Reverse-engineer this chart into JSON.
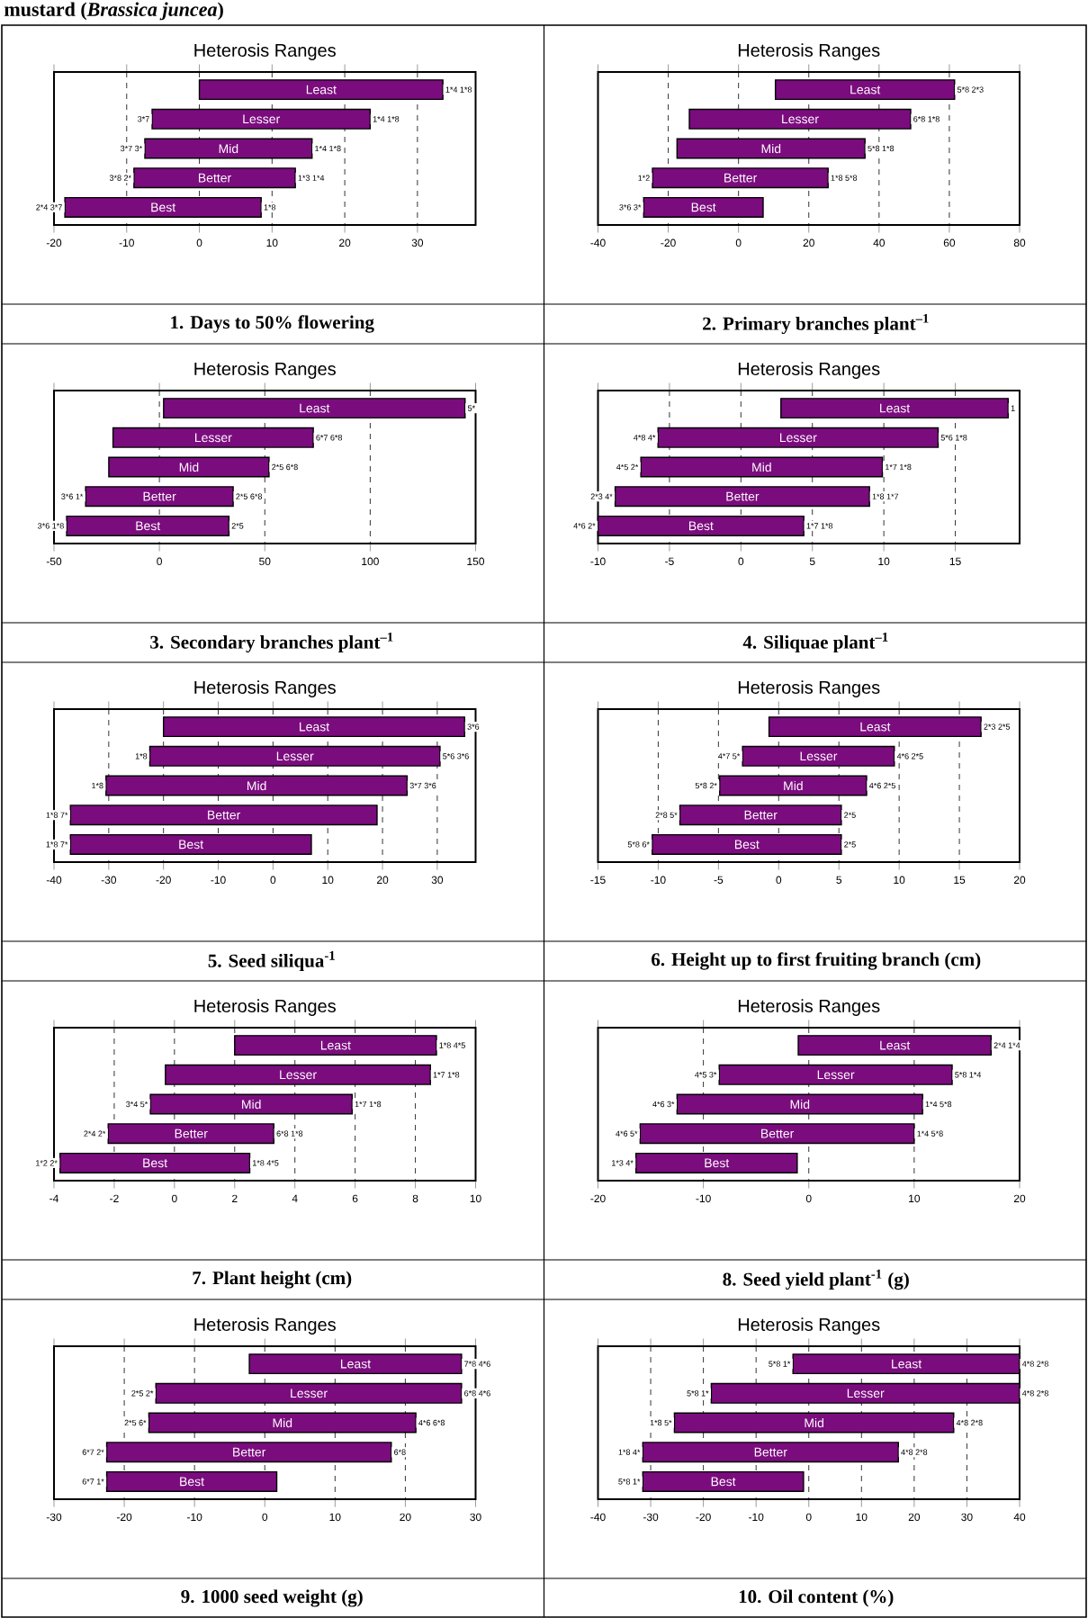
{
  "chart_data": [
    {
      "type": "other",
      "title": "mustard (*Brassica juncea*)"
    },
    {
      "type": "bar",
      "orientation": "horizontal",
      "title": "Heterosis Ranges",
      "xlabel": "1. Days to 50% flowering",
      "color": "#7b0c7e",
      "grid": "x",
      "categories": [
        "Least",
        "Lesser",
        "Mid",
        "Better",
        "Best"
      ],
      "base": [
        0,
        -6.5,
        -7.5,
        -9,
        -18.5
      ],
      "values": [
        33.5,
        30,
        23,
        22.2,
        27
      ],
      "xlim": [
        -20,
        38
      ],
      "xticks": [
        -20,
        -10,
        0,
        10,
        20,
        30
      ],
      "annotations": [
        {
          "text": "1*4 1*8",
          "x": 33.5,
          "y": "Least"
        },
        {
          "text": "3*7",
          "x": -6.5,
          "y": "Lesser"
        },
        {
          "text": "1*4 1*8",
          "x": 23.5,
          "y": "Lesser"
        },
        {
          "text": "3*7 3*",
          "x": -7.5,
          "y": "Mid"
        },
        {
          "text": "1*4 1*8",
          "x": 15.5,
          "y": "Mid"
        },
        {
          "text": "3*8 2*",
          "x": -9,
          "y": "Better"
        },
        {
          "text": "1*3 1*4",
          "x": 13.2,
          "y": "Better"
        },
        {
          "text": "2*4 3*7",
          "x": -18.5,
          "y": "Best"
        },
        {
          "text": "1*8",
          "x": 8.5,
          "y": "Best"
        }
      ]
    },
    {
      "type": "bar",
      "orientation": "horizontal",
      "title": "Heterosis Ranges",
      "xlabel": "2. Primary branches plant$^{–1}$",
      "color": "#7b0c7e",
      "grid": "x",
      "categories": [
        "Least",
        "Lesser",
        "Mid",
        "Better",
        "Best"
      ],
      "base": [
        10.5,
        -14,
        -17.5,
        -24.5,
        -27
      ],
      "values": [
        51,
        63,
        53.5,
        50,
        34
      ],
      "xlim": [
        -40,
        80
      ],
      "xticks": [
        -40,
        -20,
        0,
        20,
        40,
        60,
        80
      ],
      "annotations": [
        {
          "text": "5*8 2*3",
          "x": 61.5,
          "y": "Least"
        },
        {
          "text": "6*8 1*8",
          "x": 49,
          "y": "Lesser"
        },
        {
          "text": "5*8 1*8",
          "x": 36,
          "y": "Mid"
        },
        {
          "text": "1*2",
          "x": -24.5,
          "y": "Better"
        },
        {
          "text": "1*8 5*8",
          "x": 25.5,
          "y": "Better"
        },
        {
          "text": "3*6 3*",
          "x": -27,
          "y": "Best"
        }
      ]
    },
    {
      "type": "bar",
      "orientation": "horizontal",
      "title": "Heterosis Ranges",
      "xlabel": "3. Secondary branches plant$^{–1}$",
      "color": "#7b0c7e",
      "grid": "x",
      "categories": [
        "Least",
        "Lesser",
        "Mid",
        "Better",
        "Best"
      ],
      "base": [
        2,
        -22,
        -24,
        -35,
        -44
      ],
      "values": [
        143,
        95,
        76,
        70,
        77
      ],
      "xlim": [
        -50,
        150
      ],
      "xticks": [
        -50,
        0,
        50,
        100,
        150
      ],
      "annotations": [
        {
          "text": "5*",
          "x": 145,
          "y": "Least"
        },
        {
          "text": "6*7 6*8",
          "x": 73,
          "y": "Lesser"
        },
        {
          "text": "2*5 6*8",
          "x": 52,
          "y": "Mid"
        },
        {
          "text": "3*6 1*",
          "x": -35,
          "y": "Better"
        },
        {
          "text": "2*5 6*8",
          "x": 35,
          "y": "Better"
        },
        {
          "text": "3*6 1*8",
          "x": -44,
          "y": "Best"
        },
        {
          "text": "2*5",
          "x": 33,
          "y": "Best"
        }
      ]
    },
    {
      "type": "bar",
      "orientation": "horizontal",
      "title": "Heterosis Ranges",
      "xlabel": "4. Siliquae plant$^{–1}$",
      "color": "#7b0c7e",
      "grid": "x",
      "categories": [
        "Least",
        "Lesser",
        "Mid",
        "Better",
        "Best"
      ],
      "base": [
        2.8,
        -5.8,
        -7,
        -8.8,
        -10
      ],
      "values": [
        15.9,
        19.6,
        16.9,
        17.8,
        14.4
      ],
      "xlim": [
        -10,
        19.5
      ],
      "xticks": [
        -10,
        -5,
        0,
        5,
        10,
        15
      ],
      "annotations": [
        {
          "text": "1",
          "x": 18.7,
          "y": "Least"
        },
        {
          "text": "4*8 4*",
          "x": -5.8,
          "y": "Lesser"
        },
        {
          "text": "5*6 1*8",
          "x": 13.8,
          "y": "Lesser"
        },
        {
          "text": "4*5 2*",
          "x": -7,
          "y": "Mid"
        },
        {
          "text": "1*7 1*8",
          "x": 9.9,
          "y": "Mid"
        },
        {
          "text": "2*3 4*",
          "x": -8.8,
          "y": "Better"
        },
        {
          "text": "1*8 1*7",
          "x": 9,
          "y": "Better"
        },
        {
          "text": "4*6 2*",
          "x": -10,
          "y": "Best"
        },
        {
          "text": "1*7 1*8",
          "x": 4.4,
          "y": "Best"
        }
      ]
    },
    {
      "type": "bar",
      "orientation": "horizontal",
      "title": "Heterosis Ranges",
      "xlabel": "5. Seed siliqua$^{-1}$",
      "color": "#7b0c7e",
      "grid": "x",
      "categories": [
        "Least",
        "Lesser",
        "Mid",
        "Better",
        "Best"
      ],
      "base": [
        -20,
        -22.5,
        -30.5,
        -37,
        -37
      ],
      "values": [
        55,
        53,
        55,
        56,
        44
      ],
      "xlim": [
        -40,
        37
      ],
      "xticks": [
        -40,
        -30,
        -20,
        -10,
        0,
        10,
        20,
        30
      ],
      "annotations": [
        {
          "text": "3*6",
          "x": 35,
          "y": "Least"
        },
        {
          "text": "1*8",
          "x": -22.5,
          "y": "Lesser"
        },
        {
          "text": "5*6 3*6",
          "x": 30.5,
          "y": "Lesser"
        },
        {
          "text": "1*8",
          "x": -30.5,
          "y": "Mid"
        },
        {
          "text": "3*7 3*6",
          "x": 24.5,
          "y": "Mid"
        },
        {
          "text": "1*8 7*",
          "x": -37,
          "y": "Better"
        },
        {
          "text": "1*8 7*",
          "x": -37,
          "y": "Best"
        }
      ]
    },
    {
      "type": "bar",
      "orientation": "horizontal",
      "title": "Heterosis Ranges",
      "xlabel": "6. Height up to first fruiting branch (cm)",
      "color": "#7b0c7e",
      "grid": "x",
      "categories": [
        "Least",
        "Lesser",
        "Mid",
        "Better",
        "Best"
      ],
      "base": [
        -0.8,
        -3,
        -4.9,
        -8.2,
        -10.5
      ],
      "values": [
        17.6,
        12.6,
        12.2,
        13.4,
        15.7
      ],
      "xlim": [
        -15,
        20
      ],
      "xticks": [
        -15,
        -10,
        -5,
        0,
        5,
        10,
        15,
        20
      ],
      "annotations": [
        {
          "text": "2*3 2*5",
          "x": 16.8,
          "y": "Least"
        },
        {
          "text": "4*7 5*",
          "x": -3,
          "y": "Lesser"
        },
        {
          "text": "4*6 2*5",
          "x": 9.6,
          "y": "Lesser"
        },
        {
          "text": "5*8 2*",
          "x": -4.9,
          "y": "Mid"
        },
        {
          "text": "4*6 2*5",
          "x": 7.3,
          "y": "Mid"
        },
        {
          "text": "2*8 5*",
          "x": -8.2,
          "y": "Better"
        },
        {
          "text": "2*5",
          "x": 5.2,
          "y": "Better"
        },
        {
          "text": "5*8 6*",
          "x": -10.5,
          "y": "Best"
        },
        {
          "text": "2*5",
          "x": 5.2,
          "y": "Best"
        }
      ]
    },
    {
      "type": "bar",
      "orientation": "horizontal",
      "title": "Heterosis Ranges",
      "xlabel": "7. Plant height (cm)",
      "color": "#7b0c7e",
      "grid": "x",
      "categories": [
        "Least",
        "Lesser",
        "Mid",
        "Better",
        "Best"
      ],
      "base": [
        2,
        -0.3,
        -0.8,
        -2.2,
        -3.8
      ],
      "values": [
        6.7,
        8.8,
        6.7,
        5.5,
        6.3
      ],
      "xlim": [
        -4,
        10
      ],
      "xticks": [
        -4,
        -2,
        0,
        2,
        4,
        6,
        8,
        10
      ],
      "annotations": [
        {
          "text": "1*8 4*5",
          "x": 8.7,
          "y": "Least"
        },
        {
          "text": "1*7 1*8",
          "x": 8.5,
          "y": "Lesser"
        },
        {
          "text": "3*4 5*",
          "x": -0.8,
          "y": "Mid"
        },
        {
          "text": "1*7 1*8",
          "x": 5.9,
          "y": "Mid"
        },
        {
          "text": "2*4 2*",
          "x": -2.2,
          "y": "Better"
        },
        {
          "text": "6*8 1*8",
          "x": 3.3,
          "y": "Better"
        },
        {
          "text": "1*2 2*",
          "x": -3.8,
          "y": "Best"
        },
        {
          "text": "1*8 4*5",
          "x": 2.5,
          "y": "Best"
        }
      ]
    },
    {
      "type": "bar",
      "orientation": "horizontal",
      "title": "Heterosis Ranges",
      "xlabel": "8. Seed yield plant$^{-1}$ (g)",
      "color": "#7b0c7e",
      "grid": "x",
      "categories": [
        "Least",
        "Lesser",
        "Mid",
        "Better",
        "Best"
      ],
      "base": [
        -1,
        -8.5,
        -12.5,
        -16,
        -16.4
      ],
      "values": [
        18.3,
        22.1,
        23.3,
        26,
        15.3
      ],
      "xlim": [
        -20,
        20
      ],
      "xticks": [
        -20,
        -10,
        0,
        10,
        20
      ],
      "annotations": [
        {
          "text": "2*4 1*4",
          "x": 17.3,
          "y": "Least"
        },
        {
          "text": "4*5 3*",
          "x": -8.5,
          "y": "Lesser"
        },
        {
          "text": "5*8 1*4",
          "x": 13.6,
          "y": "Lesser"
        },
        {
          "text": "4*6 3*",
          "x": -12.5,
          "y": "Mid"
        },
        {
          "text": "1*4 5*8",
          "x": 10.8,
          "y": "Mid"
        },
        {
          "text": "4*6 5*",
          "x": -16,
          "y": "Better"
        },
        {
          "text": "1*4 5*8",
          "x": 10,
          "y": "Better"
        },
        {
          "text": "1*3 4*",
          "x": -16.4,
          "y": "Best"
        }
      ]
    },
    {
      "type": "bar",
      "orientation": "horizontal",
      "title": "Heterosis Ranges",
      "xlabel": "9. 1000 seed weight (g)",
      "color": "#7b0c7e",
      "grid": "x",
      "categories": [
        "Least",
        "Lesser",
        "Mid",
        "Better",
        "Best"
      ],
      "base": [
        -2.2,
        -15.5,
        -16.5,
        -22.5,
        -22.5
      ],
      "values": [
        30.2,
        43.5,
        38,
        40.5,
        24.2
      ],
      "xlim": [
        -30,
        30
      ],
      "xticks": [
        -30,
        -20,
        -10,
        0,
        10,
        20,
        30
      ],
      "annotations": [
        {
          "text": "7*8 4*6",
          "x": 28,
          "y": "Least"
        },
        {
          "text": "2*5 2*",
          "x": -15.5,
          "y": "Lesser"
        },
        {
          "text": "6*8 4*6",
          "x": 28,
          "y": "Lesser"
        },
        {
          "text": "2*5 6*",
          "x": -16.5,
          "y": "Mid"
        },
        {
          "text": "4*6 6*8",
          "x": 21.5,
          "y": "Mid"
        },
        {
          "text": "6*7 2*",
          "x": -22.5,
          "y": "Better"
        },
        {
          "text": "6*8",
          "x": 18,
          "y": "Better"
        },
        {
          "text": "6*7 1*",
          "x": -22.5,
          "y": "Best"
        }
      ]
    },
    {
      "type": "bar",
      "orientation": "horizontal",
      "title": "Heterosis Ranges",
      "xlabel": "10. Oil content (%)",
      "color": "#7b0c7e",
      "grid": "x",
      "categories": [
        "Least",
        "Lesser",
        "Mid",
        "Better",
        "Best"
      ],
      "base": [
        -3,
        -18.5,
        -25.5,
        -31.5,
        -31.5
      ],
      "values": [
        43,
        58.5,
        53,
        48.5,
        30.5
      ],
      "xlim": [
        -40,
        40
      ],
      "xticks": [
        -40,
        -30,
        -20,
        -10,
        0,
        10,
        20,
        30,
        40
      ],
      "annotations": [
        {
          "text": "5*8 1*",
          "x": -3,
          "y": "Least"
        },
        {
          "text": "4*8 2*8",
          "x": 40,
          "y": "Least"
        },
        {
          "text": "5*8 1*",
          "x": -18.5,
          "y": "Lesser"
        },
        {
          "text": "4*8 2*8",
          "x": 40,
          "y": "Lesser"
        },
        {
          "text": "1*8 5*",
          "x": -25.5,
          "y": "Mid"
        },
        {
          "text": "4*8 2*8",
          "x": 27.5,
          "y": "Mid"
        },
        {
          "text": "1*8 4*",
          "x": -31.5,
          "y": "Better"
        },
        {
          "text": "4*8 2*8",
          "x": 17,
          "y": "Better"
        },
        {
          "text": "5*8 1*",
          "x": -31.5,
          "y": "Best"
        }
      ]
    }
  ]
}
